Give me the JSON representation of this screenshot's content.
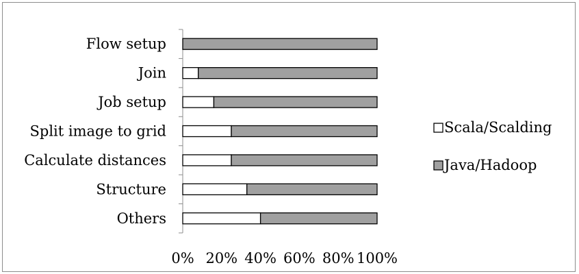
{
  "chart_data": {
    "type": "bar",
    "orientation": "horizontal",
    "stacked": "percent",
    "title": "",
    "xlabel": "",
    "ylabel": "",
    "xlim": [
      0,
      100
    ],
    "x_ticks": [
      "0%",
      "20%",
      "40%",
      "60%",
      "80%",
      "100%"
    ],
    "categories": [
      "Flow setup",
      "Join",
      "Job setup",
      "Split image to grid",
      "Calculate distances",
      "Structure",
      "Others"
    ],
    "series": [
      {
        "name": "Scala/Scalding",
        "color": "#ffffff",
        "values": [
          0,
          8,
          16,
          25,
          25,
          33,
          40
        ]
      },
      {
        "name": "Java/Hadoop",
        "color": "#a0a0a0",
        "values": [
          100,
          92,
          84,
          75,
          75,
          67,
          60
        ]
      }
    ],
    "legend_position": "right",
    "grid": false
  }
}
